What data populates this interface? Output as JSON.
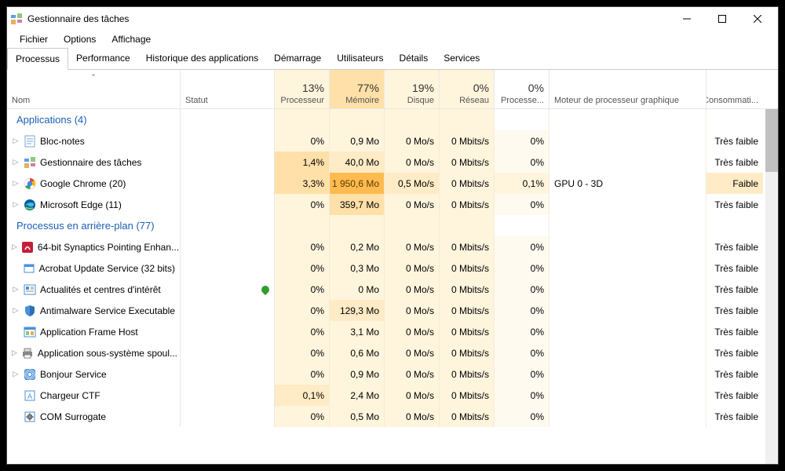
{
  "window": {
    "title": "Gestionnaire des tâches"
  },
  "menu": {
    "file": "Fichier",
    "options": "Options",
    "view": "Affichage"
  },
  "tabs": {
    "items": [
      "Processus",
      "Performance",
      "Historique des applications",
      "Démarrage",
      "Utilisateurs",
      "Détails",
      "Services"
    ],
    "active": 0
  },
  "columns": {
    "name": "Nom",
    "status": "Statut",
    "cpu": {
      "pct": "13%",
      "label": "Processeur"
    },
    "mem": {
      "pct": "77%",
      "label": "Mémoire"
    },
    "disk": {
      "pct": "19%",
      "label": "Disque"
    },
    "net": {
      "pct": "0%",
      "label": "Réseau"
    },
    "gpu": {
      "pct": "0%",
      "label": "Processe..."
    },
    "gpueng": "Moteur de processeur graphique",
    "power": "Consommati..."
  },
  "groups": {
    "apps": {
      "label": "Applications (4)"
    },
    "bg": {
      "label": "Processus en arrière-plan (77)"
    }
  },
  "rows": {
    "apps": [
      {
        "icon": "notepad",
        "name": "Bloc-notes",
        "expand": true,
        "cpu": "0%",
        "cpu_h": 1,
        "mem": "0,9 Mo",
        "mem_h": 1,
        "disk": "0 Mo/s",
        "disk_h": 1,
        "net": "0 Mbits/s",
        "net_h": 1,
        "gpu": "0%",
        "gpu_h": 0,
        "gpueng": "",
        "power": "Très faible"
      },
      {
        "icon": "taskmgr",
        "name": "Gestionnaire des tâches",
        "expand": true,
        "cpu": "1,4%",
        "cpu_h": 3,
        "mem": "40,0 Mo",
        "mem_h": 2,
        "disk": "0 Mo/s",
        "disk_h": 1,
        "net": "0 Mbits/s",
        "net_h": 1,
        "gpu": "0%",
        "gpu_h": 0,
        "gpueng": "",
        "power": "Très faible"
      },
      {
        "icon": "chrome",
        "name": "Google Chrome (20)",
        "expand": true,
        "cpu": "3,3%",
        "cpu_h": 3,
        "mem": "1 950,6 Mo",
        "mem_h": 5,
        "disk": "0,5 Mo/s",
        "disk_h": 2,
        "net": "0 Mbits/s",
        "net_h": 1,
        "gpu": "0,1%",
        "gpu_h": 1,
        "gpueng": "GPU 0 - 3D",
        "power": "Faible",
        "power_h": 2
      },
      {
        "icon": "edge",
        "name": "Microsoft Edge (11)",
        "expand": true,
        "cpu": "0%",
        "cpu_h": 1,
        "mem": "359,7 Mo",
        "mem_h": 3,
        "disk": "0 Mo/s",
        "disk_h": 1,
        "net": "0 Mbits/s",
        "net_h": 1,
        "gpu": "0%",
        "gpu_h": 0,
        "gpueng": "",
        "power": "Très faible"
      }
    ],
    "bg": [
      {
        "icon": "synaptics",
        "name": "64-bit Synaptics Pointing Enhan...",
        "expand": true,
        "cpu": "0%",
        "cpu_h": 1,
        "mem": "0,2 Mo",
        "mem_h": 1,
        "disk": "0 Mo/s",
        "disk_h": 1,
        "net": "0 Mbits/s",
        "net_h": 1,
        "gpu": "0%",
        "gpu_h": 0,
        "gpueng": "",
        "power": "Très faible"
      },
      {
        "icon": "app",
        "name": "Acrobat Update Service (32 bits)",
        "expand": false,
        "cpu": "0%",
        "cpu_h": 1,
        "mem": "0,3 Mo",
        "mem_h": 1,
        "disk": "0 Mo/s",
        "disk_h": 1,
        "net": "0 Mbits/s",
        "net_h": 1,
        "gpu": "0%",
        "gpu_h": 0,
        "gpueng": "",
        "power": "Très faible"
      },
      {
        "icon": "news",
        "name": "Actualités et centres d'intérêt",
        "expand": true,
        "leaf": true,
        "cpu": "0%",
        "cpu_h": 1,
        "mem": "0 Mo",
        "mem_h": 1,
        "disk": "0 Mo/s",
        "disk_h": 1,
        "net": "0 Mbits/s",
        "net_h": 1,
        "gpu": "0%",
        "gpu_h": 0,
        "gpueng": "",
        "power": "Très faible"
      },
      {
        "icon": "defender",
        "name": "Antimalware Service Executable",
        "expand": true,
        "cpu": "0%",
        "cpu_h": 1,
        "mem": "129,3 Mo",
        "mem_h": 2,
        "disk": "0 Mo/s",
        "disk_h": 1,
        "net": "0 Mbits/s",
        "net_h": 1,
        "gpu": "0%",
        "gpu_h": 0,
        "gpueng": "",
        "power": "Très faible"
      },
      {
        "icon": "framehost",
        "name": "Application Frame Host",
        "expand": false,
        "cpu": "0%",
        "cpu_h": 1,
        "mem": "3,1 Mo",
        "mem_h": 1,
        "disk": "0 Mo/s",
        "disk_h": 1,
        "net": "0 Mbits/s",
        "net_h": 1,
        "gpu": "0%",
        "gpu_h": 0,
        "gpueng": "",
        "power": "Très faible"
      },
      {
        "icon": "printer",
        "name": "Application sous-système spoul...",
        "expand": true,
        "cpu": "0%",
        "cpu_h": 1,
        "mem": "0,6 Mo",
        "mem_h": 1,
        "disk": "0 Mo/s",
        "disk_h": 1,
        "net": "0 Mbits/s",
        "net_h": 1,
        "gpu": "0%",
        "gpu_h": 0,
        "gpueng": "",
        "power": "Très faible"
      },
      {
        "icon": "bonjour",
        "name": "Bonjour Service",
        "expand": true,
        "cpu": "0%",
        "cpu_h": 1,
        "mem": "0,9 Mo",
        "mem_h": 1,
        "disk": "0 Mo/s",
        "disk_h": 1,
        "net": "0 Mbits/s",
        "net_h": 1,
        "gpu": "0%",
        "gpu_h": 0,
        "gpueng": "",
        "power": "Très faible"
      },
      {
        "icon": "ctf",
        "name": "Chargeur CTF",
        "expand": false,
        "cpu": "0,1%",
        "cpu_h": 2,
        "mem": "2,4 Mo",
        "mem_h": 1,
        "disk": "0 Mo/s",
        "disk_h": 1,
        "net": "0 Mbits/s",
        "net_h": 1,
        "gpu": "0%",
        "gpu_h": 0,
        "gpueng": "",
        "power": "Très faible"
      },
      {
        "icon": "com",
        "name": "COM Surrogate",
        "expand": false,
        "cpu": "0%",
        "cpu_h": 1,
        "mem": "0,5 Mo",
        "mem_h": 1,
        "disk": "0 Mo/s",
        "disk_h": 1,
        "net": "0 Mbits/s",
        "net_h": 1,
        "gpu": "0%",
        "gpu_h": 0,
        "gpueng": "",
        "power": "Très faible"
      }
    ]
  },
  "colors": {
    "heat": [
      "#ffffff",
      "#fffaf0",
      "#fff5dd",
      "#ffebc5",
      "#ffe0a8",
      "#ffbb4f"
    ],
    "group_text": "#1a5fb4",
    "leaf_green": "#2e9e2e"
  }
}
